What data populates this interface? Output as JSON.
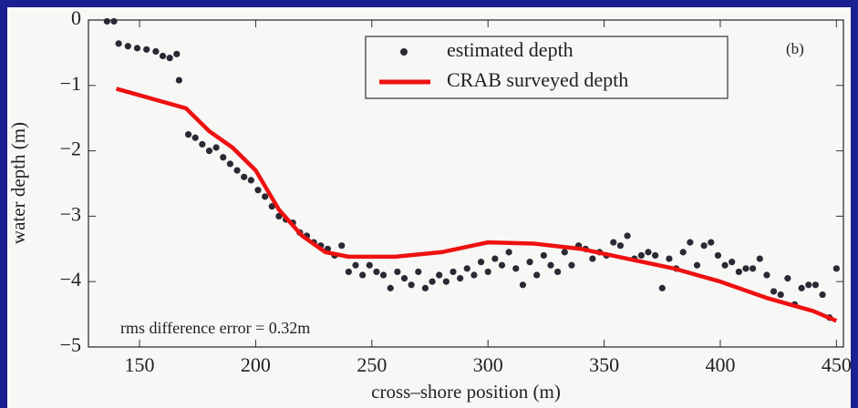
{
  "chart_data": {
    "type": "scatter",
    "xlabel": "cross–shore position (m)",
    "ylabel": "water depth (m)",
    "panel_label": "(b)",
    "annotation": "rms difference error = 0.32m",
    "xlim": [
      128,
      453
    ],
    "ylim": [
      -5,
      0
    ],
    "xticks": [
      150,
      200,
      250,
      300,
      350,
      400,
      450
    ],
    "yticks": [
      0,
      {
        "value": -1,
        "label": "−1"
      },
      {
        "value": -2,
        "label": "−2"
      },
      {
        "value": -3,
        "label": "−3"
      },
      {
        "value": -4,
        "label": "−4"
      },
      {
        "value": -5,
        "label": "−5"
      }
    ],
    "legend": "upper right",
    "series": [
      {
        "name": "estimated depth",
        "kind": "scatter",
        "color": "#2a2a35",
        "x": [
          136,
          139,
          141,
          145,
          149,
          153,
          157,
          160,
          163,
          166,
          167,
          171,
          174,
          177,
          180,
          183,
          186,
          189,
          192,
          195,
          198,
          201,
          204,
          207,
          210,
          213,
          216,
          219,
          222,
          225,
          228,
          231,
          234,
          237,
          240,
          243,
          246,
          249,
          252,
          255,
          258,
          261,
          264,
          267,
          270,
          273,
          276,
          279,
          282,
          285,
          288,
          291,
          294,
          297,
          300,
          303,
          306,
          309,
          312,
          315,
          318,
          321,
          324,
          327,
          330,
          333,
          336,
          339,
          342,
          345,
          348,
          351,
          354,
          357,
          360,
          363,
          366,
          369,
          372,
          375,
          378,
          381,
          384,
          387,
          390,
          393,
          396,
          399,
          402,
          405,
          408,
          411,
          414,
          417,
          420,
          423,
          426,
          429,
          432,
          435,
          438,
          441,
          444,
          447,
          450
        ],
        "values": [
          -0.02,
          -0.02,
          -0.36,
          -0.4,
          -0.43,
          -0.45,
          -0.48,
          -0.55,
          -0.58,
          -0.52,
          -0.92,
          -1.75,
          -1.8,
          -1.9,
          -2.0,
          -1.95,
          -2.1,
          -2.2,
          -2.3,
          -2.4,
          -2.45,
          -2.6,
          -2.7,
          -2.85,
          -3.0,
          -3.05,
          -3.1,
          -3.25,
          -3.3,
          -3.4,
          -3.45,
          -3.5,
          -3.6,
          -3.45,
          -3.85,
          -3.75,
          -3.9,
          -3.75,
          -3.85,
          -3.9,
          -4.1,
          -3.85,
          -3.95,
          -4.05,
          -3.85,
          -4.1,
          -4.0,
          -3.9,
          -4.0,
          -3.85,
          -3.95,
          -3.8,
          -3.9,
          -3.7,
          -3.85,
          -3.65,
          -3.75,
          -3.55,
          -3.8,
          -4.05,
          -3.7,
          -3.9,
          -3.6,
          -3.75,
          -3.85,
          -3.55,
          -3.75,
          -3.45,
          -3.5,
          -3.65,
          -3.55,
          -3.6,
          -3.4,
          -3.45,
          -3.3,
          -3.65,
          -3.6,
          -3.55,
          -3.6,
          -4.1,
          -3.65,
          -3.8,
          -3.55,
          -3.4,
          -3.75,
          -3.45,
          -3.4,
          -3.6,
          -3.75,
          -3.7,
          -3.85,
          -3.8,
          -3.8,
          -3.65,
          -3.9,
          -4.15,
          -4.2,
          -3.95,
          -4.35,
          -4.1,
          -4.05,
          -4.05,
          -4.2,
          -4.55,
          -3.8
        ]
      },
      {
        "name": "CRAB surveyed depth",
        "kind": "line",
        "color": "#ee1111",
        "x": [
          140,
          150,
          160,
          170,
          180,
          190,
          200,
          210,
          220,
          230,
          240,
          260,
          280,
          300,
          320,
          340,
          360,
          380,
          400,
          420,
          440,
          450
        ],
        "values": [
          -1.05,
          -1.15,
          -1.25,
          -1.35,
          -1.7,
          -1.95,
          -2.3,
          -2.9,
          -3.3,
          -3.55,
          -3.62,
          -3.62,
          -3.55,
          -3.4,
          -3.42,
          -3.5,
          -3.65,
          -3.8,
          -4.0,
          -4.25,
          -4.45,
          -4.6
        ]
      }
    ]
  }
}
